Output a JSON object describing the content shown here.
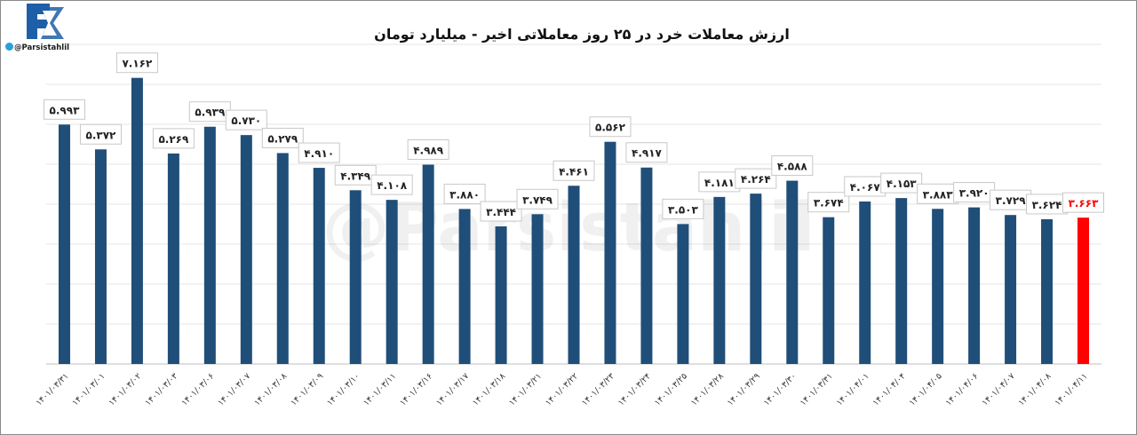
{
  "brand": {
    "handle": "@Parsistahlil",
    "watermark": "@Parsistahlil",
    "logo_color": "#1f5fa8",
    "telegram_icon": "telegram-icon"
  },
  "chart_data": {
    "type": "bar",
    "title": "ارزش معاملات خرد در ۲۵ روز معاملاتی اخیر - میلیارد تومان",
    "xlabel": "",
    "ylabel": "",
    "ylim": [
      0,
      8
    ],
    "grid": true,
    "categories": [
      "۱۴۰۱/۰۳/۳۱",
      "۱۴۰۱/۰۳/۰۱",
      "۱۴۰۱/۰۳/۰۲",
      "۱۴۰۱/۰۳/۰۳",
      "۱۴۰۱/۰۳/۰۶",
      "۱۴۰۱/۰۳/۰۷",
      "۱۴۰۱/۰۳/۰۸",
      "۱۴۰۱/۰۳/۰۹",
      "۱۴۰۱/۰۳/۱۰",
      "۱۴۰۱/۰۳/۱۱",
      "۱۴۰۱/۰۳/۱۶",
      "۱۴۰۱/۰۳/۱۷",
      "۱۴۰۱/۰۳/۱۸",
      "۱۴۰۱/۰۳/۲۱",
      "۱۴۰۱/۰۳/۲۲",
      "۱۴۰۱/۰۳/۲۳",
      "۱۴۰۱/۰۳/۲۴",
      "۱۴۰۱/۰۳/۲۵",
      "۱۴۰۱/۰۳/۲۸",
      "۱۴۰۱/۰۳/۲۹",
      "۱۴۰۱/۰۳/۳۰",
      "۱۴۰۱/۰۳/۳۱",
      "۱۴۰۱/۰۴/۰۱",
      "۱۴۰۱/۰۴/۰۴",
      "۱۴۰۱/۰۴/۰۵",
      "۱۴۰۱/۰۴/۰۶",
      "۱۴۰۱/۰۴/۰۷",
      "۱۴۰۱/۰۴/۰۸",
      "۱۴۰۱/۰۴/۱۱"
    ],
    "values": [
      5.993,
      5.372,
      7.162,
      5.269,
      5.939,
      5.73,
      5.279,
      4.91,
      4.349,
      4.108,
      4.989,
      3.88,
      3.444,
      3.749,
      4.461,
      5.562,
      4.917,
      3.503,
      4.181,
      4.264,
      4.588,
      3.674,
      4.067,
      4.153,
      3.883,
      3.92,
      3.729,
      3.624,
      3.663
    ],
    "value_labels": [
      "۵.۹۹۳",
      "۵.۳۷۲",
      "۷.۱۶۲",
      "۵.۲۶۹",
      "۵.۹۳۹",
      "۵.۷۳۰",
      "۵.۲۷۹",
      "۴.۹۱۰",
      "۴.۳۴۹",
      "۴.۱۰۸",
      "۴.۹۸۹",
      "۳.۸۸۰",
      "۳.۴۴۴",
      "۳.۷۴۹",
      "۴.۴۶۱",
      "۵.۵۶۲",
      "۴.۹۱۷",
      "۳.۵۰۳",
      "۴.۱۸۱",
      "۴.۲۶۴",
      "۴.۵۸۸",
      "۳.۶۷۴",
      "۴.۰۶۷",
      "۴.۱۵۳",
      "۳.۸۸۳",
      "۳.۹۲۰",
      "۳.۷۲۹",
      "۳.۶۲۴",
      "۳.۶۶۳"
    ],
    "bar_color": "#1f4e79",
    "highlight_color": "#ff0000",
    "highlight_index": 28
  }
}
